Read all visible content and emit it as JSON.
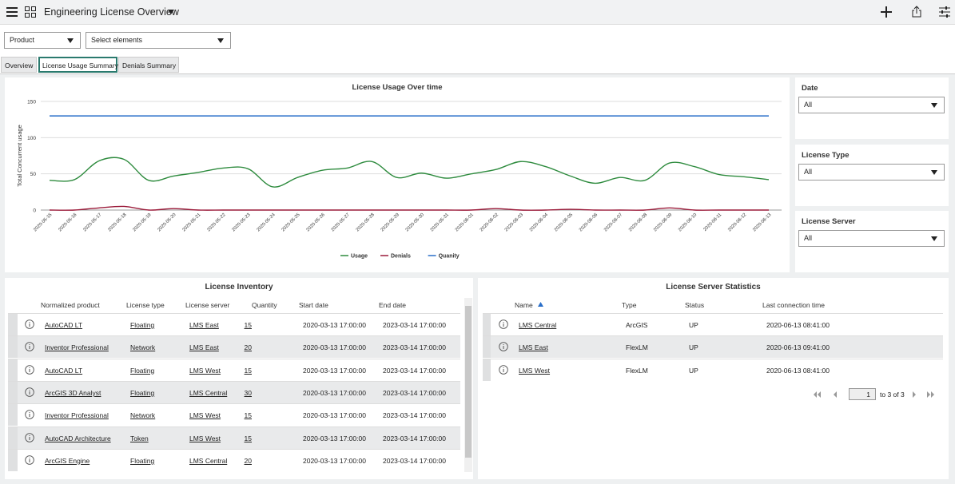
{
  "header": {
    "title": "Engineering License Overview"
  },
  "filters": {
    "product": "Product",
    "elements": "Select elements"
  },
  "tabs": [
    "Overview",
    "License Usage Summary",
    "Denials Summary"
  ],
  "chart_data": {
    "type": "line",
    "title": "License Usage Over time",
    "y_label": "Total Concurrent usage",
    "x": [
      "2020-05-15",
      "2020-05-16",
      "2020-05-17",
      "2020-05-18",
      "2020-05-19",
      "2020-05-20",
      "2020-05-21",
      "2020-05-22",
      "2020-05-23",
      "2020-05-24",
      "2020-05-25",
      "2020-05-26",
      "2020-05-27",
      "2020-05-28",
      "2020-05-29",
      "2020-05-30",
      "2020-05-31",
      "2020-06-01",
      "2020-06-02",
      "2020-06-03",
      "2020-06-04",
      "2020-06-05",
      "2020-06-06",
      "2020-06-07",
      "2020-06-08",
      "2020-06-09",
      "2020-06-10",
      "2020-06-11",
      "2020-06-12",
      "2020-06-13"
    ],
    "series": [
      {
        "name": "Usage",
        "color": "#2e8b3e",
        "values": [
          41,
          42,
          68,
          70,
          41,
          47,
          52,
          58,
          57,
          32,
          45,
          55,
          58,
          67,
          45,
          51,
          44,
          50,
          56,
          67,
          60,
          47,
          37,
          45,
          41,
          65,
          60,
          49,
          46,
          42
        ]
      },
      {
        "name": "Denials",
        "color": "#9b1b3a",
        "values": [
          0,
          0,
          3,
          5,
          0,
          2,
          0,
          0,
          0,
          0,
          0,
          0,
          0,
          0,
          0,
          0,
          0,
          0,
          2,
          0,
          0,
          1,
          0,
          0,
          0,
          3,
          0,
          0,
          0,
          0
        ]
      },
      {
        "name": "Quanity",
        "color": "#2a6fc9",
        "values": [
          130,
          130,
          130,
          130,
          130,
          130,
          130,
          130,
          130,
          130,
          130,
          130,
          130,
          130,
          130,
          130,
          130,
          130,
          130,
          130,
          130,
          130,
          130,
          130,
          130,
          130,
          130,
          130,
          130,
          130
        ]
      }
    ],
    "ylim": [
      0,
      150
    ],
    "yticks": [
      0,
      50,
      100,
      150
    ],
    "grid": true,
    "legend": "bottom"
  },
  "side_filters": [
    {
      "label": "Date",
      "value": "All"
    },
    {
      "label": "License Type",
      "value": "All"
    },
    {
      "label": "License Server",
      "value": "All"
    }
  ],
  "inventory": {
    "title": "License Inventory",
    "columns": [
      "Normalized product",
      "License type",
      "License server",
      "Quantity",
      "Start date",
      "End date"
    ],
    "rows": [
      [
        "AutoCAD LT",
        "Floating",
        "LMS East",
        15,
        "2020-03-13 17:00:00",
        "2023-03-14 17:00:00"
      ],
      [
        "Inventor Professional",
        "Network",
        "LMS East",
        20,
        "2020-03-13 17:00:00",
        "2023-03-14 17:00:00"
      ],
      [
        "AutoCAD LT",
        "Floating",
        "LMS West",
        15,
        "2020-03-13 17:00:00",
        "2023-03-14 17:00:00"
      ],
      [
        "ArcGIS 3D Analyst",
        "Floating",
        "LMS Central",
        30,
        "2020-03-13 17:00:00",
        "2023-03-14 17:00:00"
      ],
      [
        "Inventor Professional",
        "Network",
        "LMS West",
        15,
        "2020-03-13 17:00:00",
        "2023-03-14 17:00:00"
      ],
      [
        "AutoCAD Architecture",
        "Token",
        "LMS West",
        15,
        "2020-03-13 17:00:00",
        "2023-03-14 17:00:00"
      ],
      [
        "ArcGIS Engine",
        "Floating",
        "LMS Central",
        20,
        "2020-03-13 17:00:00",
        "2023-03-14 17:00:00"
      ]
    ]
  },
  "server_stats": {
    "title": "License Server Statistics",
    "columns": [
      "Name",
      "Type",
      "Status",
      "Last connection time"
    ],
    "rows": [
      [
        "LMS Central",
        "ArcGIS",
        "UP",
        "2020-06-13 08:41:00"
      ],
      [
        "LMS East",
        "FlexLM",
        "UP",
        "2020-06-13 09:41:00"
      ],
      [
        "LMS West",
        "FlexLM",
        "UP",
        "2020-06-13 08:41:00"
      ]
    ],
    "pagination": {
      "page": 1,
      "range": "to 3 of 3"
    }
  }
}
